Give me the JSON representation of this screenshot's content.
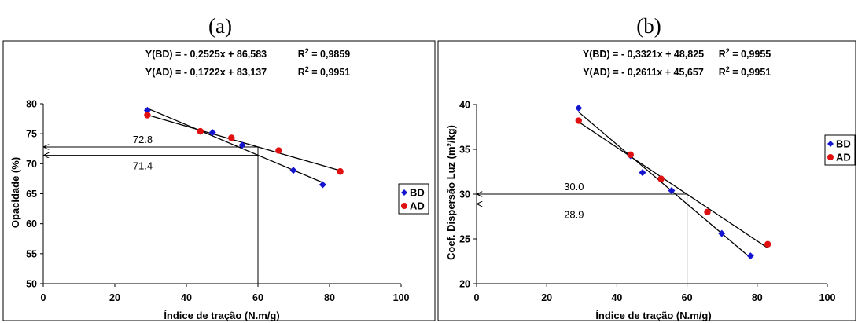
{
  "chart_data": [
    {
      "type": "scatter",
      "panel_label": "(a)",
      "equations": [
        {
          "text": "Y(BD) = - 0,2525x + 86,583",
          "r2_prefix": "R",
          "r2_sup": "2",
          "r2_value": " = 0,9859"
        },
        {
          "text": "Y(AD) = - 0,1722x + 83,137",
          "r2_prefix": "R",
          "r2_sup": "2",
          "r2_value": " = 0,9951"
        }
      ],
      "xlabel": "Índice de tração (N.m/g)",
      "ylabel": "Opacidade (%)",
      "xlim": [
        0,
        100
      ],
      "ylim": [
        50,
        80
      ],
      "xticks": [
        0,
        20,
        40,
        60,
        80,
        100
      ],
      "yticks": [
        50,
        55,
        60,
        65,
        70,
        75,
        80
      ],
      "series": [
        {
          "name": "BD",
          "color": "#1515d0",
          "marker": "diamond",
          "x": [
            29.1,
            47.3,
            55.6,
            69.9,
            78.1
          ],
          "y": [
            78.9,
            75.2,
            73.1,
            68.9,
            66.5
          ],
          "fit": {
            "slope": -0.2525,
            "intercept": 86.583,
            "x": [
              29.1,
              78.1
            ]
          }
        },
        {
          "name": "AD",
          "color": "#e01010",
          "marker": "circle",
          "x": [
            29.1,
            43.9,
            52.6,
            65.8,
            83.0
          ],
          "y": [
            78.1,
            75.4,
            74.3,
            72.2,
            68.7
          ],
          "fit": {
            "slope": -0.1722,
            "intercept": 83.137,
            "x": [
              29.1,
              83.0
            ]
          }
        }
      ],
      "annotations": [
        {
          "label": "72.8",
          "y": 72.8,
          "x_target": 60
        },
        {
          "label": "71.4",
          "y": 71.4,
          "x_target": 60
        }
      ],
      "legend_position": "right"
    },
    {
      "type": "scatter",
      "panel_label": "(b)",
      "equations": [
        {
          "text": "Y(BD) = - 0,3321x + 48,825",
          "r2_prefix": "R",
          "r2_sup": "2",
          "r2_value": " = 0,9955"
        },
        {
          "text": "Y(AD) = - 0,2611x + 45,657",
          "r2_prefix": "R",
          "r2_sup": "2",
          "r2_value": " = 0,9951"
        }
      ],
      "xlabel": "Índice de tração (N.m/g)",
      "ylabel": "Coef. Dispersão Luz (m²/kg)",
      "xlim": [
        0,
        100
      ],
      "ylim": [
        20,
        40
      ],
      "xticks": [
        0,
        20,
        40,
        60,
        80,
        100
      ],
      "yticks": [
        20,
        25,
        30,
        35,
        40
      ],
      "series": [
        {
          "name": "BD",
          "color": "#1515d0",
          "marker": "diamond",
          "x": [
            29.1,
            43.9,
            47.3,
            55.6,
            69.9,
            78.1
          ],
          "y": [
            39.6,
            34.3,
            32.4,
            30.4,
            25.6,
            23.1
          ],
          "fit": {
            "slope": -0.3321,
            "intercept": 48.825,
            "x": [
              29.1,
              78.1
            ]
          }
        },
        {
          "name": "AD",
          "color": "#e01010",
          "marker": "circle",
          "x": [
            29.1,
            43.9,
            52.6,
            65.8,
            83.0
          ],
          "y": [
            38.2,
            34.4,
            31.7,
            28.0,
            24.4
          ],
          "fit": {
            "slope": -0.2611,
            "intercept": 45.657,
            "x": [
              29.1,
              83.0
            ]
          }
        }
      ],
      "annotations": [
        {
          "label": "30.0",
          "y": 30.0,
          "x_target": 60
        },
        {
          "label": "28.9",
          "y": 28.9,
          "x_target": 60
        }
      ],
      "legend_position": "right"
    }
  ]
}
